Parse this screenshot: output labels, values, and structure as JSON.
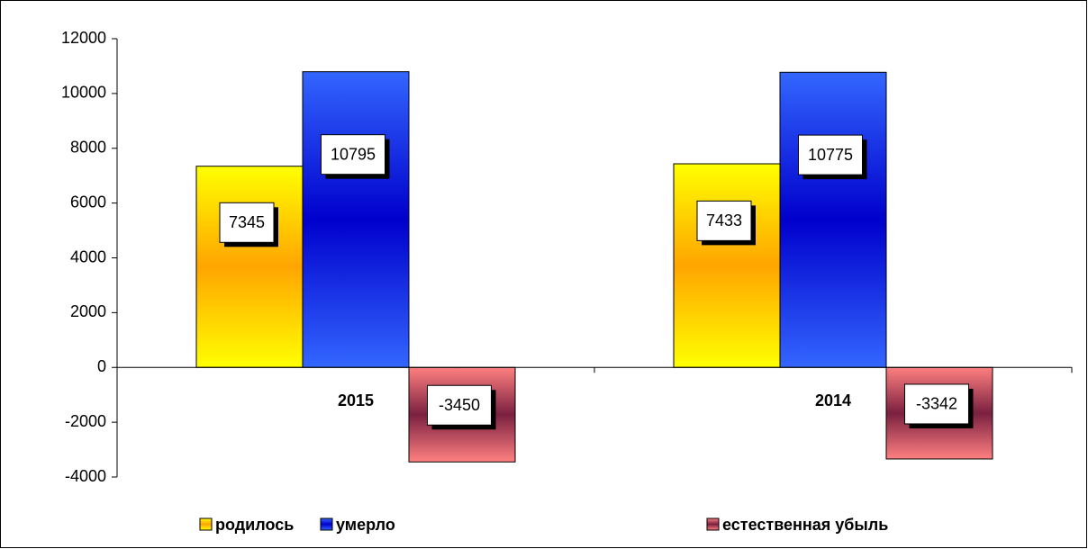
{
  "chart_data": {
    "type": "bar",
    "categories": [
      "2015",
      "2014"
    ],
    "series": [
      {
        "name": "родилось",
        "color": "#ffa500",
        "values": [
          7345,
          7433
        ]
      },
      {
        "name": "умерло",
        "color": "#0000cc",
        "values": [
          10795,
          10775
        ]
      },
      {
        "name": "естественная убыль",
        "color": "#7a2040",
        "values": [
          -3450,
          -3342
        ]
      }
    ],
    "ylim": [
      -4000,
      12000
    ],
    "yticks": [
      -4000,
      -2000,
      0,
      2000,
      4000,
      6000,
      8000,
      10000,
      12000
    ],
    "legend": "bottom"
  }
}
